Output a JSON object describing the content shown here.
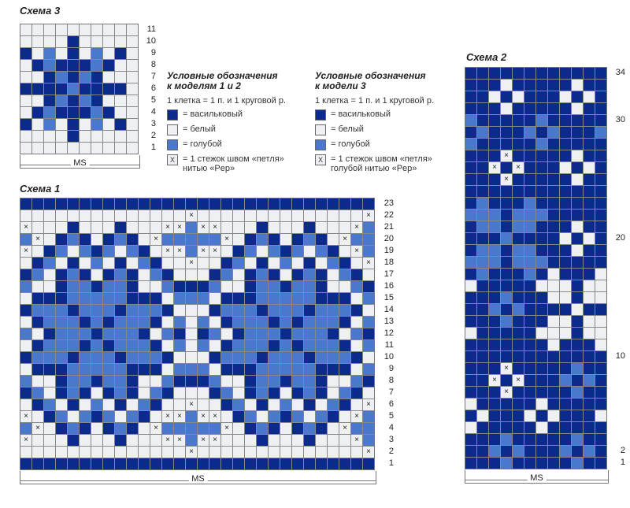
{
  "schema3": {
    "title": "Схема 3",
    "ms_label": "MS",
    "row_numbers": [
      "11",
      "10",
      "9",
      "8",
      "7",
      "6",
      "5",
      "4",
      "3",
      "2",
      "1"
    ],
    "rows": [
      "WWWWWWWWWW",
      "WWWWDWWWWW",
      "DWLWDWLWDW",
      "WDLDDDLDWW",
      "WWDLDLDWWW",
      "DDDDLDDDDW",
      "WWDLDLDWWW",
      "WDLDDDLDWW",
      "DWLWDWLWDW",
      "WWWWDWWWWW",
      "WWWWWWWWWW"
    ]
  },
  "legend12": {
    "title_line1": "Условные обозначения",
    "title_line2": "к моделям 1 и 2",
    "scale": "1 клетка = 1 п. и 1 круговой р.",
    "items": [
      {
        "swatch": "D",
        "label": "= васильковый"
      },
      {
        "swatch": "W",
        "label": "= белый"
      },
      {
        "swatch": "L",
        "label": "= голубой"
      },
      {
        "swatch": "X",
        "label": "= 1 стежок швом «петля»",
        "label2": "нитью «Pep»"
      }
    ]
  },
  "legend3": {
    "title_line1": "Условные обозначения",
    "title_line2": "к модели 3",
    "scale": "1 клетка = 1 п. и 1 круговой р.",
    "items": [
      {
        "swatch": "D",
        "label": "= васильковый"
      },
      {
        "swatch": "W",
        "label": "= белый"
      },
      {
        "swatch": "L",
        "label": "= голубой"
      },
      {
        "swatch": "X",
        "label": "= 1 стежок швом «петля»",
        "label2": "голубой нитью «Pep»"
      }
    ]
  },
  "schema1": {
    "title": "Схема 1",
    "ms_label": "MS",
    "row_numbers": [
      "23",
      "22",
      "21",
      "20",
      "19",
      "18",
      "17",
      "16",
      "15",
      "14",
      "13",
      "12",
      "11",
      "10",
      "9",
      "8",
      "7",
      "6",
      "5",
      "4",
      "3",
      "2",
      "1"
    ],
    "rows": [
      "DDDDDDDDDDDDDDDDDDDDDDDDDDDDDD",
      "WWWWWWWWWWWWWWXWWWWWWWWWWWWWWX",
      "XWWWDWWWDWWWXXLXXWWWDWWWDWWWXL",
      "LXWDLDWDLDWXLLLLLXWDLDWDLDWXLL",
      "XWDLWLDLWLDWXXLXXWDLWLDLWLDWXL",
      "WDLWDWLWDWLDWWXWWDLWDWLWDWLDWX",
      "DLWDLDWDLDWLDWWWDLWDLDWDLDWLDW",
      "LWWDLLDLLDWWLDDDLWWDLLDLLDWWLD",
      "WDDDLLLLLDDDWLLLWDDDLLLLLDDDWL",
      "DLLLDLLLDLLLDWWWDLLLDLLLDLLLDW",
      "WDLLLDLDLLLDWLWLWDLLLDLDLLLDWL",
      "LWDLLLDLLLDWLDWDLWDLLLDLLLDWLD",
      "WDLLLDLDLLLDWLWLWDLLLDLDLLLDWL",
      "DLLLDLLLDLLLDWWWDLLLDLLLDLLLDW",
      "WDDDLLLLLDDDWLLLWDDDLLLLLDDDWL",
      "LWWDLLDLLDWWLDDDLWWDLLDLLDWWLD",
      "DLWDLDWDLDWLDWWWDLWDLDWDLDWLDW",
      "WDLWDWLWDWLDWWXWWDLWDWLWDWLDWX",
      "XWDLWLDLWLDWXXLXXWDLWLDLWLDWXL",
      "LXWDLDWDLDWXLLLLLXWDLDWDLDWXLL",
      "XWWWDWWWDWWWXXLXXWWWDWWWDWWWXL",
      "WWWWWWWWWWWWWWXWWWWWWWWWWWWWWX",
      "DDDDDDDDDDDDDDDDDDDDDDDDDDDDDD"
    ]
  },
  "schema2": {
    "title": "Схема 2",
    "ms_label": "MS",
    "row_labels": [
      {
        "row": 34,
        "text": "34"
      },
      {
        "row": 30,
        "text": "30"
      },
      {
        "row": 20,
        "text": "20"
      },
      {
        "row": 10,
        "text": "10"
      },
      {
        "row": 2,
        "text": "2"
      },
      {
        "row": 1,
        "text": "1"
      }
    ],
    "rows": [
      "DDDDDDDDDDDD",
      "DDDWDDDDDWDD",
      "DDWDWDDDWDWD",
      "DDDWDDDDDWDD",
      "LDDDDDLDDDDD",
      "DLDDDLDLDDDL",
      "LDDDDDLDDDDD",
      "DDDXDDDDDWDD",
      "DDXDXDDDWDWD",
      "DDDXDDDDDWDD",
      "DDDDDDDDDDDD",
      "DLDDDLDDDDDD",
      "LLLDLLLDDDDD",
      "DLLDLLDDDWDD",
      "DDDLDDDDWDWD",
      "DLLDLLDDDWDD",
      "LLLDLLLDDDDD",
      "DLDDDLDWDDDW",
      "WDDDDDWWWDWW",
      "DDDLDDDWWDWW",
      "DDLDLDDDDWDD",
      "DDDLDDDWWDWW",
      "WDDDDDWWWDWW",
      "DDDDDDDWDDDW",
      "DDDDDDDDDDDD",
      "DDDXDDDDDLDD",
      "DDXDXDDDLDLD",
      "DDDXDDDDDLDD",
      "WDDDDDWDDDDD",
      "DWDDDWDWDDDW",
      "WDDDDDWDDDDD",
      "DDDLDDDDDLDD",
      "DDLDLDDDLDLD",
      "DDDLDDDDDLDD"
    ]
  }
}
